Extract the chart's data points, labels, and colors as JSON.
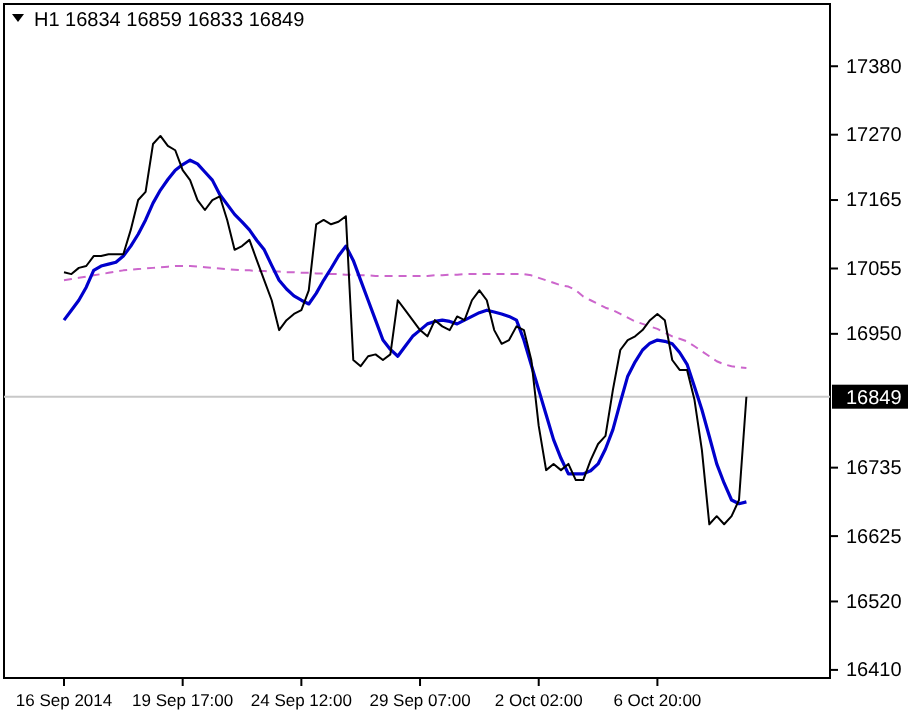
{
  "chart_data": {
    "type": "line",
    "title": "H1  16834 16859 16833 16849",
    "categories": [
      "16 Sep 2014",
      null,
      null,
      null,
      null,
      null,
      null,
      null,
      null,
      null,
      null,
      null,
      null,
      null,
      null,
      null,
      "19 Sep 17:00",
      null,
      null,
      null,
      null,
      null,
      null,
      null,
      null,
      null,
      null,
      null,
      null,
      null,
      null,
      null,
      "24 Sep 12:00",
      null,
      null,
      null,
      null,
      null,
      null,
      null,
      null,
      null,
      null,
      null,
      null,
      null,
      null,
      null,
      "29 Sep 07:00",
      null,
      null,
      null,
      null,
      null,
      null,
      null,
      null,
      null,
      null,
      null,
      null,
      null,
      null,
      null,
      "2 Oct 02:00",
      null,
      null,
      null,
      null,
      null,
      null,
      null,
      null,
      null,
      null,
      null,
      null,
      null,
      null,
      null,
      "6 Oct 20:00",
      null,
      null,
      null,
      null,
      null,
      null,
      null,
      null,
      null,
      null,
      null,
      null,
      null,
      null,
      null,
      null,
      null,
      null,
      null,
      null,
      null,
      null,
      null
    ],
    "series": [
      {
        "color": "#000000",
        "line_style": "solid",
        "values": [
          17049,
          17046,
          17056,
          17059,
          17075,
          17075,
          17078,
          17078,
          17078,
          17117,
          17165,
          17178,
          17255,
          17268,
          17252,
          17245,
          17213,
          17197,
          17165,
          17149,
          17165,
          17171,
          17133,
          17085,
          17091,
          17101,
          17068,
          17036,
          17004,
          16956,
          16972,
          16982,
          16988,
          17020,
          17126,
          17133,
          17126,
          17130,
          17139,
          16908,
          16898,
          16914,
          16917,
          16908,
          16917,
          17004,
          16988,
          16972,
          16956,
          16946,
          16972,
          16962,
          16956,
          16978,
          16972,
          17004,
          17020,
          17004,
          16956,
          16934,
          16940,
          16962,
          16956,
          16908,
          16802,
          16731,
          16741,
          16731,
          16741,
          16715,
          16715,
          16747,
          16773,
          16786,
          16860,
          16924,
          16940,
          16946,
          16956,
          16972,
          16982,
          16972,
          16908,
          16892,
          16892,
          16844,
          16763,
          16644,
          16657,
          16644,
          16657,
          16683,
          16849,
          null,
          null,
          null,
          null,
          null,
          null,
          null,
          null,
          null,
          null,
          null
        ]
      },
      {
        "color": "#0000cc",
        "line_style": "solid",
        "values": [
          16972,
          16988,
          17004,
          17025,
          17052,
          17059,
          17062,
          17065,
          17075,
          17091,
          17110,
          17133,
          17160,
          17181,
          17198,
          17213,
          17222,
          17229,
          17223,
          17210,
          17197,
          17174,
          17158,
          17142,
          17130,
          17117,
          17100,
          17085,
          17060,
          17036,
          17022,
          17011,
          17004,
          16998,
          17015,
          17036,
          17055,
          17075,
          17091,
          17068,
          17036,
          17004,
          16972,
          16940,
          16925,
          16914,
          16930,
          16946,
          16956,
          16966,
          16970,
          16972,
          16970,
          16966,
          16972,
          16978,
          16984,
          16988,
          16985,
          16982,
          16978,
          16972,
          16940,
          16900,
          16860,
          16820,
          16780,
          16750,
          16725,
          16725,
          16725,
          16730,
          16741,
          16765,
          16796,
          16840,
          16882,
          16905,
          16924,
          16935,
          16940,
          16938,
          16934,
          16920,
          16901,
          16865,
          16828,
          16785,
          16741,
          16710,
          16683,
          16677,
          16680,
          null,
          null,
          null,
          null,
          null,
          null,
          null,
          null,
          null,
          null,
          null
        ]
      },
      {
        "color": "#cc66cc",
        "line_style": "dashed",
        "values": [
          17036,
          17038,
          17040,
          17042,
          17044,
          17046,
          17048,
          17050,
          17052,
          17053,
          17054,
          17055,
          17056,
          17057,
          17058,
          17059,
          17059,
          17059,
          17058,
          17057,
          17056,
          17055,
          17054,
          17053,
          17052,
          17052,
          17051,
          17051,
          17050,
          17050,
          17049,
          17049,
          17048,
          17048,
          17047,
          17047,
          17046,
          17046,
          17045,
          17045,
          17044,
          17044,
          17043,
          17043,
          17043,
          17043,
          17043,
          17043,
          17043,
          17043,
          17044,
          17044,
          17045,
          17045,
          17046,
          17046,
          17046,
          17046,
          17046,
          17046,
          17046,
          17046,
          17046,
          17044,
          17040,
          17036,
          17032,
          17028,
          17026,
          17020,
          17010,
          17004,
          16998,
          16992,
          16988,
          16982,
          16976,
          16970,
          16966,
          16962,
          16958,
          16952,
          16946,
          16942,
          16938,
          16930,
          16922,
          16914,
          16906,
          16901,
          16898,
          16896,
          16895,
          null,
          null,
          null,
          null,
          null,
          null,
          null,
          null,
          null,
          null,
          null
        ]
      }
    ],
    "ylim": [
      16397,
      17480
    ],
    "yticks": [
      16410,
      16520,
      16625,
      16735,
      16950,
      17055,
      17165,
      17270,
      17380
    ],
    "ref_lines": [
      {
        "axis": "y",
        "value": 16849,
        "label": "16849",
        "color": "#c8c8c8"
      }
    ],
    "grid": false
  }
}
